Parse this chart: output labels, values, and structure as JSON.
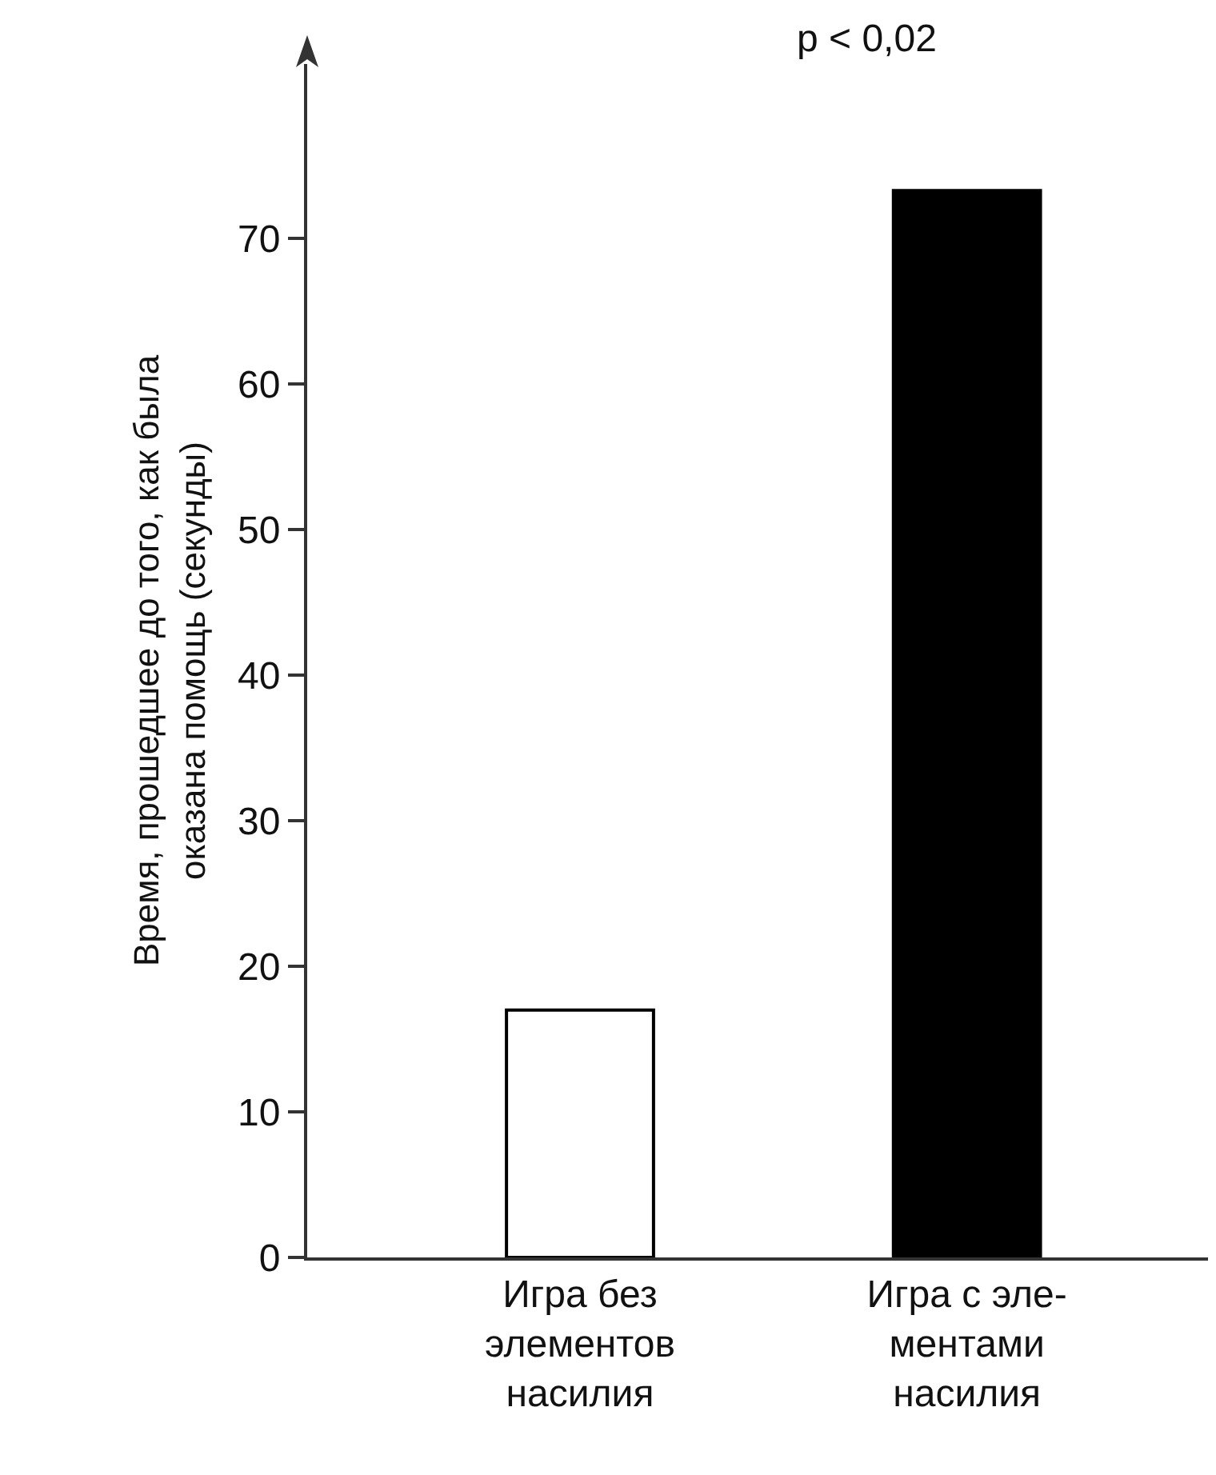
{
  "chart_data": {
    "type": "bar",
    "categories": [
      "Игра без\nэлементов\nнасилия",
      "Игра с эле-\nментами\nнасилия"
    ],
    "values": [
      17,
      73.3
    ],
    "colors": [
      "#ffffff",
      "#000000"
    ],
    "ylabel": "Время, прошедшее до того, как была\nоказана помощь (секунды)",
    "annotations": [
      "p < 0,02"
    ],
    "ylim": [
      0,
      82
    ],
    "yticks": [
      0,
      10,
      20,
      30,
      40,
      50,
      60,
      70
    ],
    "grid": false
  }
}
